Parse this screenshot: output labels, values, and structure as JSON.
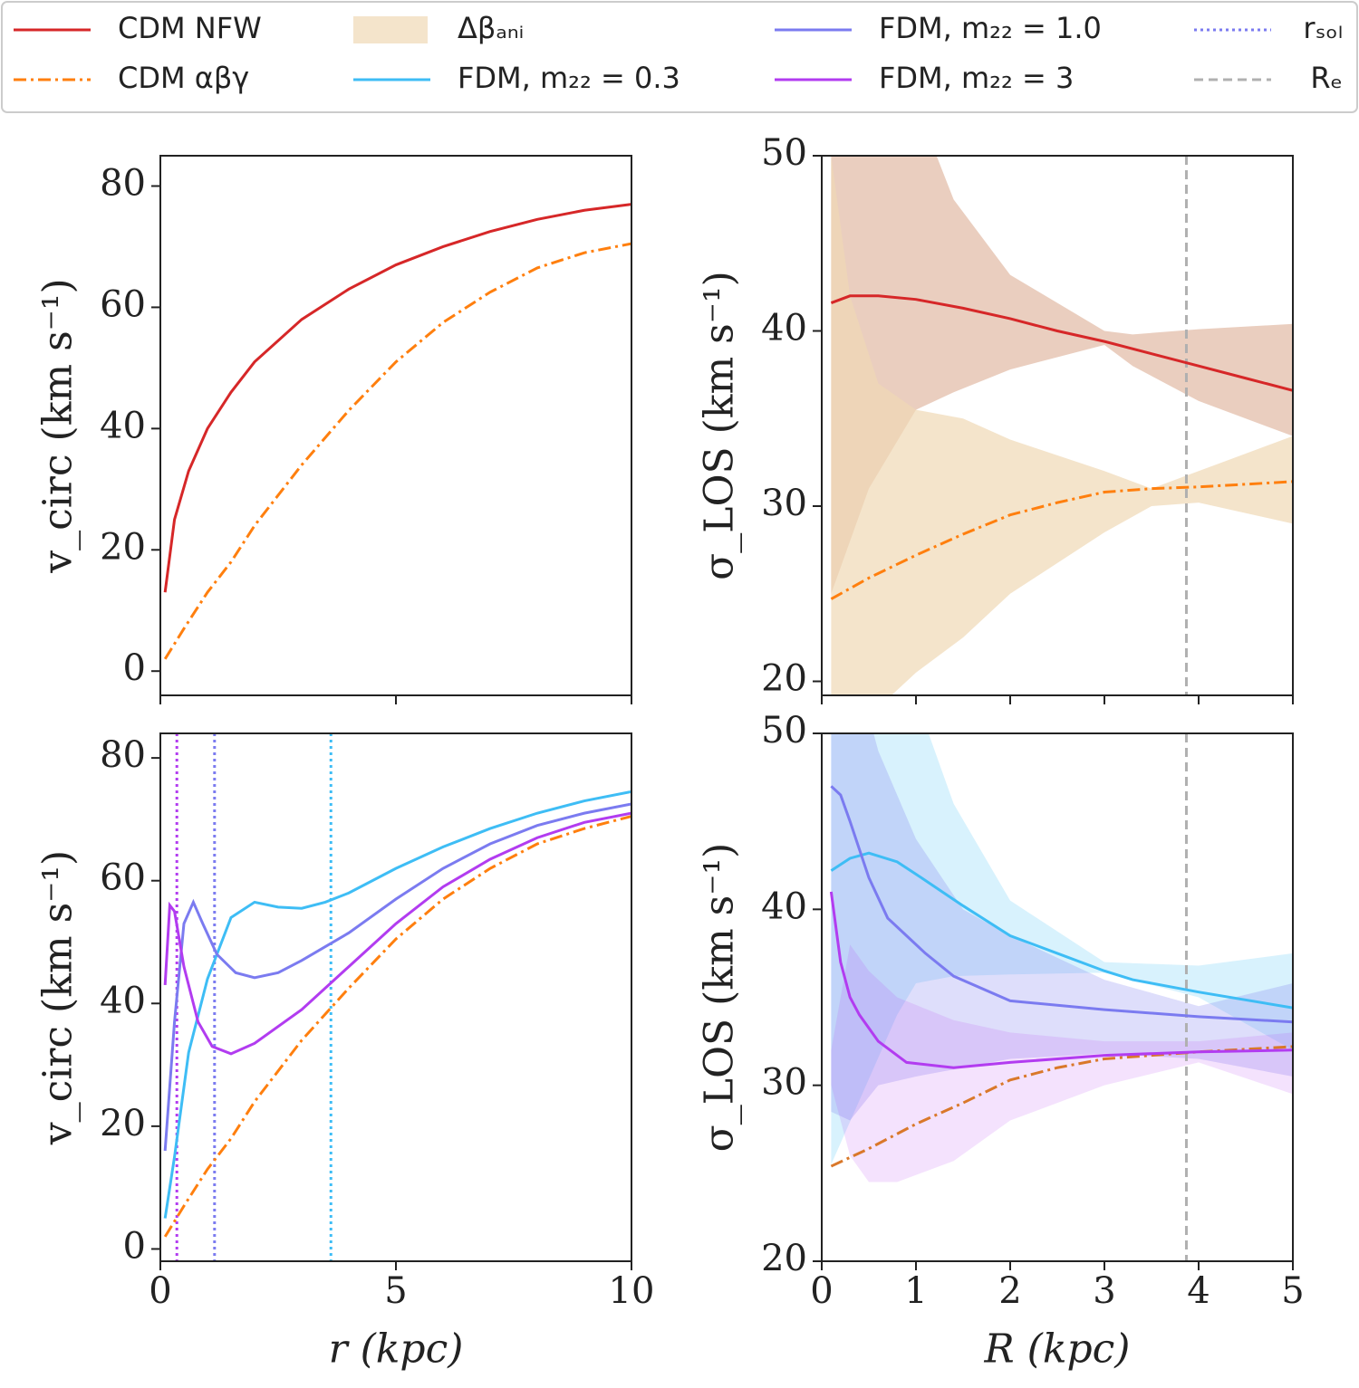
{
  "chart_data": [
    {
      "type": "line",
      "ylabel": "v_circ (km s⁻¹)",
      "xlim": [
        0,
        10
      ],
      "ylim": [
        -4,
        85
      ],
      "xticks": [
        0,
        5,
        10
      ],
      "xtick_labels": false,
      "yticks": [
        0,
        20,
        40,
        60,
        80
      ],
      "series": [
        {
          "name": "CDM NFW",
          "color": "#d62728",
          "style": "solid",
          "x": [
            0.1,
            0.3,
            0.6,
            1,
            1.5,
            2,
            3,
            4,
            5,
            6,
            7,
            8,
            9,
            10
          ],
          "values": [
            13,
            25,
            33,
            40,
            46,
            51,
            58,
            63,
            67,
            70,
            72.5,
            74.5,
            76,
            77
          ]
        },
        {
          "name": "CDM αβγ",
          "color": "#ff7f0e",
          "style": "dashdot",
          "x": [
            0.1,
            0.5,
            1,
            1.5,
            2,
            3,
            4,
            5,
            6,
            7,
            8,
            9,
            10
          ],
          "values": [
            2,
            7,
            13,
            18,
            24,
            34,
            43,
            51,
            57.5,
            62.5,
            66.5,
            69,
            70.5
          ]
        }
      ]
    },
    {
      "type": "line",
      "ylabel": "σ_LOS (km s⁻¹)",
      "xlim": [
        0,
        5
      ],
      "ylim": [
        19.2,
        50
      ],
      "xticks": [
        0,
        1,
        2,
        3,
        4,
        5
      ],
      "xtick_labels": false,
      "yticks": [
        20,
        30,
        40,
        50
      ],
      "bands": [
        {
          "color": "#d9a58a",
          "opacity": 0.55,
          "x": [
            0.1,
            0.5,
            1,
            1.4,
            2,
            3,
            3.3,
            4,
            5
          ],
          "upper": [
            55,
            56,
            53,
            47.5,
            43.2,
            40,
            39.8,
            40.1,
            40.4
          ],
          "lower": [
            25,
            31,
            35.5,
            36.5,
            37.8,
            39.2,
            38,
            36,
            34
          ]
        },
        {
          "name": "Δβₐₙᵢ",
          "color": "#f0d9b5",
          "opacity": 0.7,
          "x": [
            0.1,
            0.3,
            0.6,
            1,
            1.5,
            2,
            3,
            3.5,
            4,
            5
          ],
          "upper": [
            50,
            42,
            37,
            35.5,
            35,
            33.8,
            32,
            31,
            32,
            34
          ],
          "lower": [
            18,
            18,
            18.5,
            20.5,
            22.5,
            25,
            28.5,
            30,
            30.2,
            29
          ]
        }
      ],
      "vlines": [
        {
          "name": "Rₑ",
          "x": 3.87,
          "color": "#b0b0b0",
          "style": "dashed"
        }
      ],
      "series": [
        {
          "color": "#d62728",
          "style": "solid",
          "x": [
            0.1,
            0.3,
            0.6,
            1,
            1.5,
            2,
            2.5,
            3,
            3.5,
            4,
            4.5,
            5
          ],
          "values": [
            41.6,
            42,
            42,
            41.8,
            41.3,
            40.7,
            40,
            39.4,
            38.7,
            38,
            37.3,
            36.6
          ]
        },
        {
          "color": "#ff7f0e",
          "style": "dashdot",
          "x": [
            0.1,
            0.5,
            1,
            1.5,
            2,
            2.5,
            3,
            3.5,
            4,
            5
          ],
          "values": [
            24.7,
            25.9,
            27.2,
            28.4,
            29.5,
            30.2,
            30.8,
            31,
            31.1,
            31.4
          ]
        }
      ]
    },
    {
      "type": "line",
      "xlabel": "r (kpc)",
      "ylabel": "v_circ (km s⁻¹)",
      "xlim": [
        0,
        10
      ],
      "ylim": [
        -2,
        84
      ],
      "xticks": [
        0,
        5,
        10
      ],
      "yticks": [
        0,
        20,
        40,
        60,
        80
      ],
      "vlines": [
        {
          "x": 0.35,
          "color": "#b23cf0",
          "style": "dotted"
        },
        {
          "name": "rₛₒₗ",
          "x": 1.15,
          "color": "#7b7bf0",
          "style": "dotted"
        },
        {
          "x": 3.62,
          "color": "#3ebdf5",
          "style": "dotted"
        }
      ],
      "series": [
        {
          "color": "#ff7f0e",
          "style": "dashdot",
          "x": [
            0.1,
            0.5,
            1,
            1.5,
            2,
            3,
            4,
            5,
            6,
            7,
            8,
            9,
            10
          ],
          "values": [
            2,
            7,
            13,
            18,
            24,
            34,
            42.5,
            50.5,
            57,
            62,
            66,
            68.5,
            70.5
          ]
        },
        {
          "name": "FDM, m₂₂ = 0.3",
          "color": "#3ebdf5",
          "style": "solid",
          "x": [
            0.1,
            0.3,
            0.6,
            1,
            1.5,
            2,
            2.5,
            3,
            3.5,
            4,
            5,
            6,
            7,
            8,
            9,
            10
          ],
          "values": [
            5,
            15,
            32,
            44,
            54,
            56.5,
            55.7,
            55.5,
            56.5,
            58,
            62,
            65.5,
            68.5,
            71,
            73,
            74.5
          ]
        },
        {
          "name": "FDM, m₂₂ = 1.0",
          "color": "#7b7bf0",
          "style": "solid",
          "x": [
            0.1,
            0.3,
            0.5,
            0.7,
            0.9,
            1.2,
            1.6,
            2,
            2.5,
            3,
            4,
            5,
            6,
            7,
            8,
            9,
            10
          ],
          "values": [
            16,
            37,
            53,
            56.5,
            53,
            48,
            45,
            44.2,
            45,
            47,
            51.5,
            57,
            62,
            66,
            69,
            71,
            72.5
          ]
        },
        {
          "name": "FDM, m₂₂ = 3",
          "color": "#b23cf0",
          "style": "solid",
          "x": [
            0.1,
            0.2,
            0.3,
            0.5,
            0.8,
            1.1,
            1.5,
            2,
            3,
            4,
            5,
            6,
            7,
            8,
            9,
            10
          ],
          "values": [
            43,
            56,
            55,
            46,
            37,
            33,
            31.8,
            33.5,
            39,
            46,
            53,
            59,
            63.5,
            67,
            69.5,
            71
          ]
        }
      ]
    },
    {
      "type": "line",
      "xlabel": "R (kpc)",
      "ylabel": "σ_LOS (km s⁻¹)",
      "xlim": [
        0,
        5
      ],
      "ylim": [
        20,
        50
      ],
      "xticks": [
        0,
        1,
        2,
        3,
        4,
        5
      ],
      "yticks": [
        20,
        30,
        40,
        50
      ],
      "bands": [
        {
          "color": "#3ebdf5",
          "opacity": 0.2,
          "x": [
            0.1,
            0.8,
            1,
            1.4,
            2,
            3,
            4,
            5
          ],
          "upper": [
            55,
            55,
            52,
            46,
            40.5,
            37,
            36.8,
            37.5
          ],
          "lower": [
            25.5,
            34,
            35.8,
            36.2,
            36.3,
            36.4,
            35,
            32
          ]
        },
        {
          "color": "#7b7bf0",
          "opacity": 0.25,
          "x": [
            0.1,
            0.3,
            0.6,
            1,
            1.5,
            2,
            3,
            4,
            5
          ],
          "upper": [
            55,
            55,
            49,
            44,
            40,
            38.5,
            36,
            34.5,
            35.8
          ],
          "lower": [
            28.5,
            28,
            30,
            30.5,
            31,
            31.5,
            31.8,
            31.5,
            30.5
          ]
        },
        {
          "color": "#b23cf0",
          "opacity": 0.15,
          "x": [
            0.1,
            0.3,
            0.5,
            0.8,
            1.4,
            2,
            3,
            4,
            5
          ],
          "upper": [
            32,
            38,
            36.5,
            35,
            33.7,
            33,
            32.5,
            32.5,
            33
          ],
          "lower": [
            30,
            26,
            24.5,
            24.5,
            25.7,
            28,
            30,
            31.3,
            29.5
          ]
        }
      ],
      "vlines": [
        {
          "x": 3.87,
          "color": "#b0b0b0",
          "style": "dashed"
        }
      ],
      "series": [
        {
          "color": "#d9782a",
          "style": "dashdot",
          "x": [
            0.1,
            0.5,
            1,
            1.5,
            2,
            2.5,
            3,
            4,
            5
          ],
          "values": [
            25.4,
            26.4,
            27.8,
            29,
            30.3,
            31,
            31.5,
            31.9,
            32.2
          ]
        },
        {
          "color": "#3ebdf5",
          "style": "solid",
          "x": [
            0.1,
            0.3,
            0.5,
            0.8,
            1,
            1.5,
            2,
            2.5,
            3,
            3.3,
            4,
            5
          ],
          "values": [
            42.2,
            42.9,
            43.2,
            42.7,
            42,
            40.2,
            38.5,
            37.5,
            36.5,
            36,
            35.3,
            34.4
          ]
        },
        {
          "color": "#7b7bf0",
          "style": "solid",
          "x": [
            0.1,
            0.2,
            0.3,
            0.5,
            0.7,
            0.9,
            1.1,
            1.4,
            2,
            3,
            4,
            5
          ],
          "values": [
            47,
            46.5,
            45,
            41.8,
            39.5,
            38.5,
            37.5,
            36.2,
            34.8,
            34.3,
            33.9,
            33.6
          ]
        },
        {
          "color": "#b23cf0",
          "style": "solid",
          "x": [
            0.1,
            0.2,
            0.3,
            0.4,
            0.6,
            0.9,
            1.4,
            2,
            3,
            4,
            5
          ],
          "values": [
            41,
            37,
            35,
            34,
            32.5,
            31.3,
            31,
            31.3,
            31.7,
            31.9,
            32
          ]
        }
      ]
    }
  ]
}
